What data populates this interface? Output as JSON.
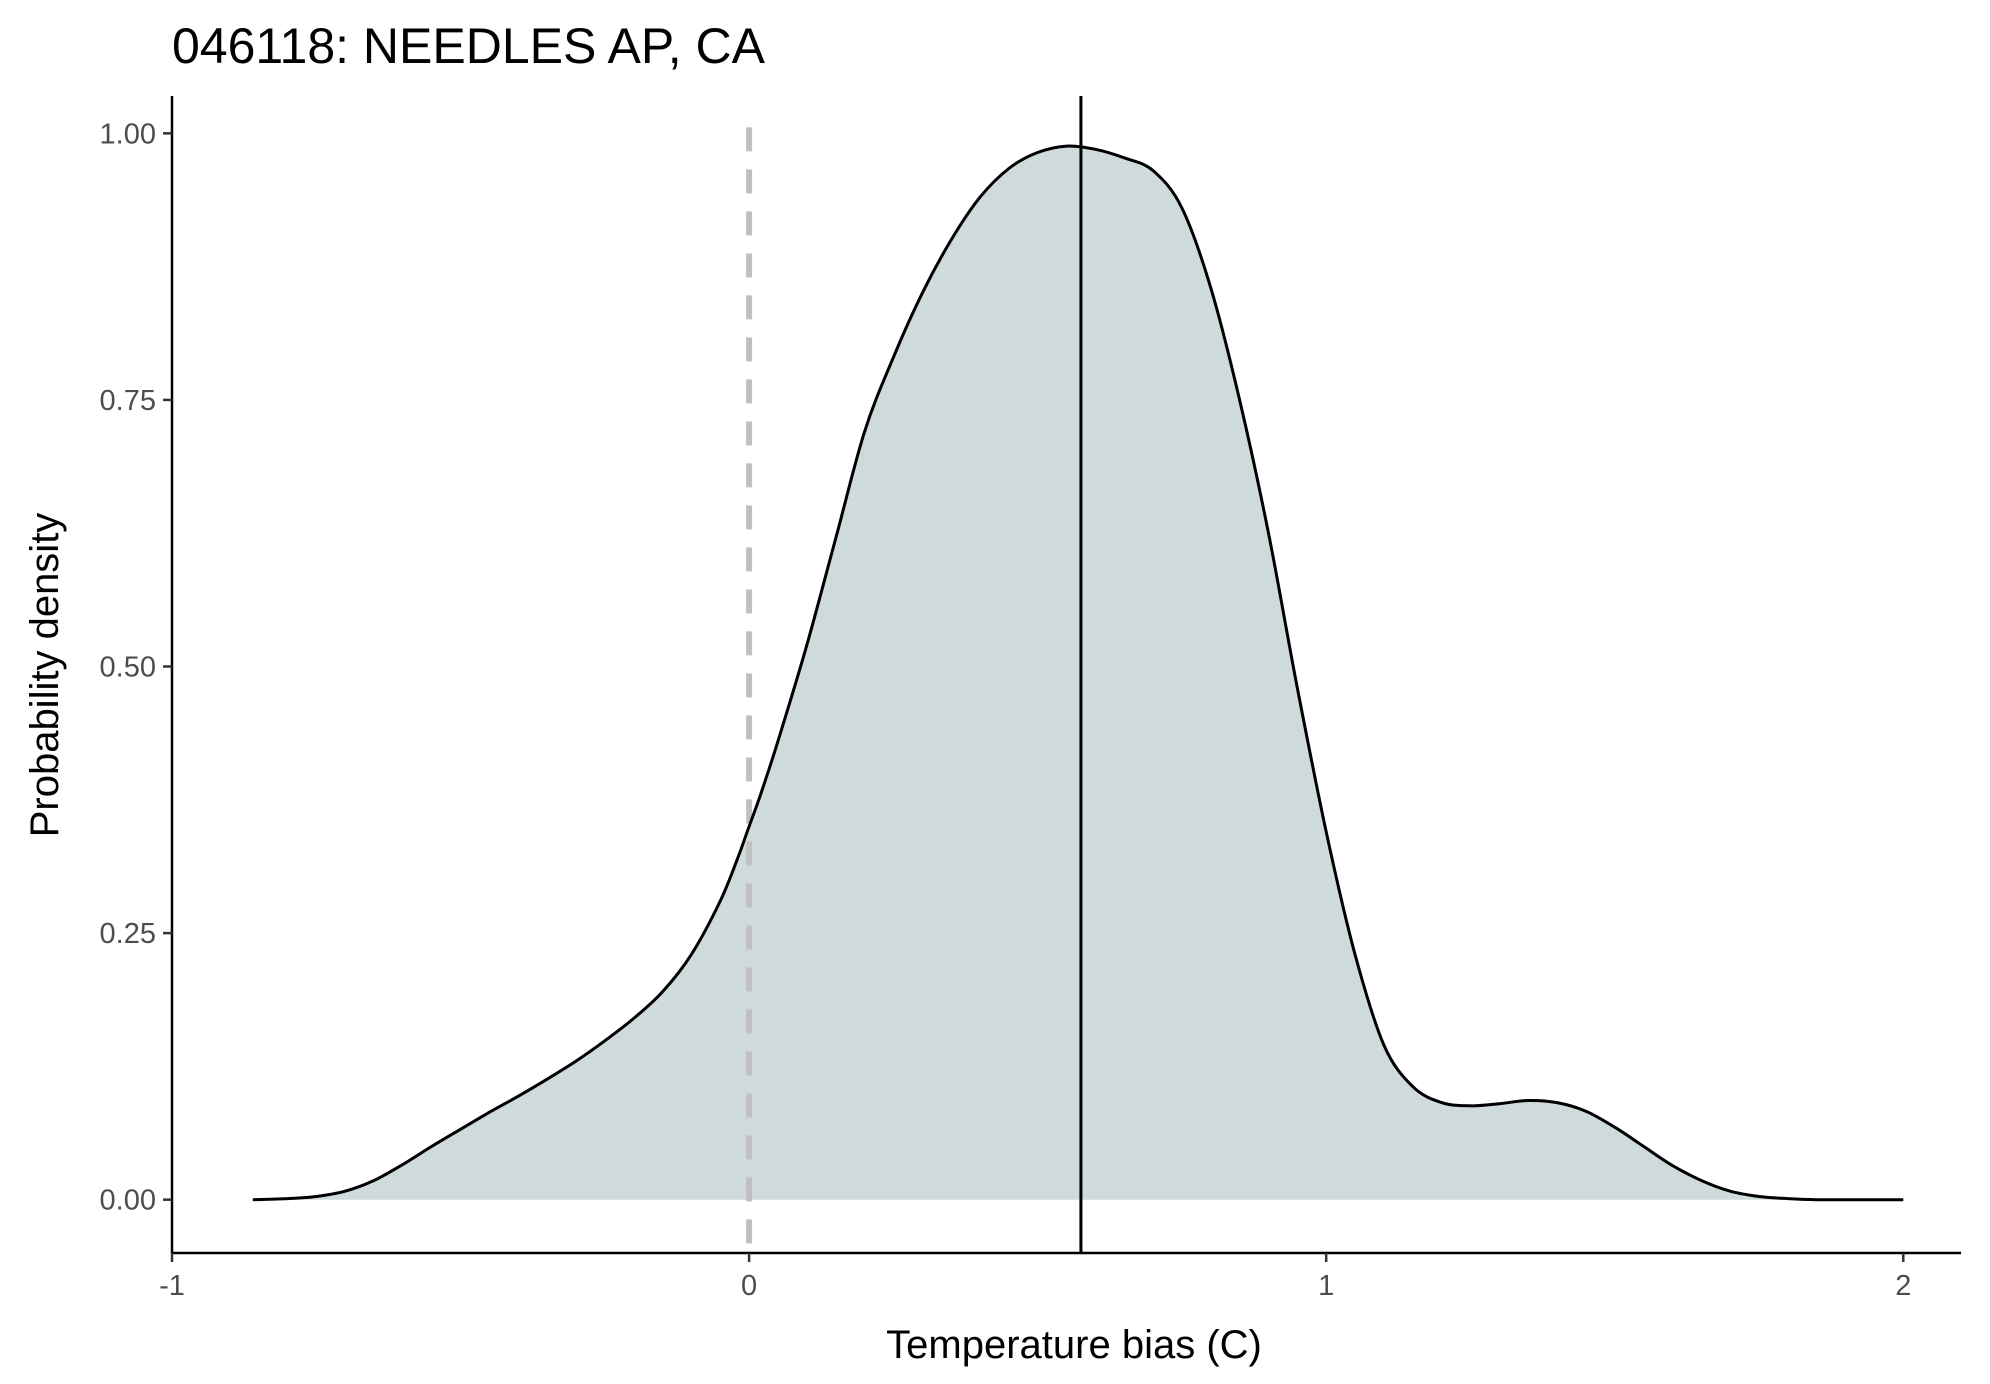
{
  "chart_data": {
    "type": "area",
    "title": "046118: NEEDLES AP, CA",
    "xlabel": "Temperature bias (C)",
    "ylabel": "Probability density",
    "xlim": [
      -1,
      2.1
    ],
    "ylim": [
      -0.05,
      1.035
    ],
    "xticks": [
      -1,
      0,
      1,
      2
    ],
    "xtick_labels": [
      "-1",
      "0",
      "1",
      "2"
    ],
    "yticks": [
      0,
      0.25,
      0.5,
      0.75,
      1.0
    ],
    "ytick_labels": [
      "0.00",
      "0.25",
      "0.50",
      "0.75",
      "1.00"
    ],
    "grid": false,
    "legend": "none",
    "reference_lines": [
      {
        "x": 0,
        "style": "dashed",
        "color": "#c0c0c0"
      },
      {
        "x": 0.575,
        "style": "solid",
        "color": "#000000"
      }
    ],
    "series": [
      {
        "fill": "#cfdadd",
        "stroke": "#000000",
        "x": [
          -0.86,
          -0.8,
          -0.75,
          -0.7,
          -0.65,
          -0.6,
          -0.55,
          -0.5,
          -0.45,
          -0.4,
          -0.35,
          -0.3,
          -0.25,
          -0.2,
          -0.15,
          -0.1,
          -0.05,
          -0.02,
          0,
          0.02,
          0.05,
          0.1,
          0.15,
          0.2,
          0.25,
          0.3,
          0.35,
          0.4,
          0.45,
          0.5,
          0.55,
          0.6,
          0.65,
          0.7,
          0.75,
          0.8,
          0.85,
          0.9,
          0.95,
          1.0,
          1.05,
          1.1,
          1.15,
          1.2,
          1.25,
          1.3,
          1.35,
          1.4,
          1.45,
          1.5,
          1.55,
          1.6,
          1.65,
          1.7,
          1.75,
          1.8,
          1.85,
          1.9,
          1.95,
          2.0
        ],
        "y": [
          0.0,
          0.001,
          0.003,
          0.008,
          0.018,
          0.033,
          0.05,
          0.066,
          0.082,
          0.097,
          0.113,
          0.13,
          0.149,
          0.17,
          0.195,
          0.23,
          0.28,
          0.32,
          0.35,
          0.38,
          0.43,
          0.52,
          0.62,
          0.72,
          0.79,
          0.85,
          0.9,
          0.94,
          0.967,
          0.982,
          0.988,
          0.985,
          0.977,
          0.965,
          0.93,
          0.855,
          0.75,
          0.625,
          0.48,
          0.345,
          0.23,
          0.145,
          0.106,
          0.091,
          0.088,
          0.09,
          0.093,
          0.091,
          0.083,
          0.068,
          0.05,
          0.032,
          0.018,
          0.008,
          0.003,
          0.001,
          0.0,
          0.0,
          0.0,
          0.0
        ]
      }
    ]
  }
}
